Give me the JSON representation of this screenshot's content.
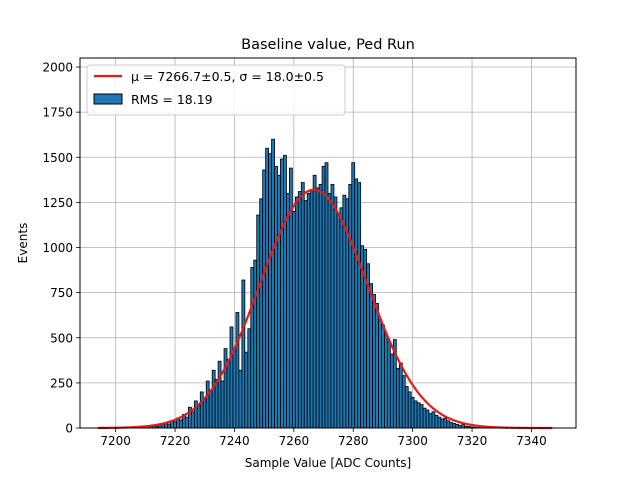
{
  "chart_data": {
    "type": "bar",
    "title": "Baseline value, Ped Run",
    "xlabel": "Sample Value [ADC Counts]",
    "ylabel": "Events",
    "xlim": [
      7188,
      7355
    ],
    "ylim": [
      0,
      2050
    ],
    "xticks": [
      7200,
      7220,
      7240,
      7260,
      7280,
      7300,
      7320,
      7340
    ],
    "yticks": [
      0,
      250,
      500,
      750,
      1000,
      1250,
      1500,
      1750,
      2000
    ],
    "grid": true,
    "legend_position": "top-left",
    "colors": {
      "bars": "#1f77b4",
      "bar_edge": "#000000",
      "fit": "#e41a1c",
      "grid": "#b0b0b0"
    },
    "histogram": {
      "name": "RMS = 18.19",
      "bin_width": 1,
      "bins": [
        {
          "x": 7210,
          "y": 3
        },
        {
          "x": 7211,
          "y": 5
        },
        {
          "x": 7212,
          "y": 8
        },
        {
          "x": 7213,
          "y": 12
        },
        {
          "x": 7214,
          "y": 10
        },
        {
          "x": 7215,
          "y": 18
        },
        {
          "x": 7216,
          "y": 20
        },
        {
          "x": 7217,
          "y": 28
        },
        {
          "x": 7218,
          "y": 22
        },
        {
          "x": 7219,
          "y": 40
        },
        {
          "x": 7220,
          "y": 35
        },
        {
          "x": 7221,
          "y": 55
        },
        {
          "x": 7222,
          "y": 45
        },
        {
          "x": 7223,
          "y": 75
        },
        {
          "x": 7224,
          "y": 60
        },
        {
          "x": 7225,
          "y": 115
        },
        {
          "x": 7226,
          "y": 90
        },
        {
          "x": 7227,
          "y": 150
        },
        {
          "x": 7228,
          "y": 125
        },
        {
          "x": 7229,
          "y": 200
        },
        {
          "x": 7230,
          "y": 160
        },
        {
          "x": 7231,
          "y": 260
        },
        {
          "x": 7232,
          "y": 210
        },
        {
          "x": 7233,
          "y": 320
        },
        {
          "x": 7234,
          "y": 270
        },
        {
          "x": 7235,
          "y": 370
        },
        {
          "x": 7236,
          "y": 260
        },
        {
          "x": 7237,
          "y": 440
        },
        {
          "x": 7238,
          "y": 380
        },
        {
          "x": 7239,
          "y": 560
        },
        {
          "x": 7240,
          "y": 430
        },
        {
          "x": 7241,
          "y": 640
        },
        {
          "x": 7242,
          "y": 320
        },
        {
          "x": 7243,
          "y": 820
        },
        {
          "x": 7244,
          "y": 420
        },
        {
          "x": 7245,
          "y": 550
        },
        {
          "x": 7246,
          "y": 890
        },
        {
          "x": 7247,
          "y": 930
        },
        {
          "x": 7248,
          "y": 1180
        },
        {
          "x": 7249,
          "y": 1270
        },
        {
          "x": 7250,
          "y": 1430
        },
        {
          "x": 7251,
          "y": 1550
        },
        {
          "x": 7252,
          "y": 1520
        },
        {
          "x": 7253,
          "y": 1600
        },
        {
          "x": 7254,
          "y": 1450
        },
        {
          "x": 7255,
          "y": 1400
        },
        {
          "x": 7256,
          "y": 1490
        },
        {
          "x": 7257,
          "y": 1510
        },
        {
          "x": 7258,
          "y": 1300
        },
        {
          "x": 7259,
          "y": 1440
        },
        {
          "x": 7260,
          "y": 1200
        },
        {
          "x": 7261,
          "y": 1280
        },
        {
          "x": 7262,
          "y": 1310
        },
        {
          "x": 7263,
          "y": 1360
        },
        {
          "x": 7264,
          "y": 1260
        },
        {
          "x": 7265,
          "y": 1300
        },
        {
          "x": 7266,
          "y": 1320
        },
        {
          "x": 7267,
          "y": 1400
        },
        {
          "x": 7268,
          "y": 1330
        },
        {
          "x": 7269,
          "y": 1350
        },
        {
          "x": 7270,
          "y": 1450
        },
        {
          "x": 7271,
          "y": 1470
        },
        {
          "x": 7272,
          "y": 1300
        },
        {
          "x": 7273,
          "y": 1350
        },
        {
          "x": 7274,
          "y": 1280
        },
        {
          "x": 7275,
          "y": 1180
        },
        {
          "x": 7276,
          "y": 1220
        },
        {
          "x": 7277,
          "y": 1290
        },
        {
          "x": 7278,
          "y": 1270
        },
        {
          "x": 7279,
          "y": 1350
        },
        {
          "x": 7280,
          "y": 1470
        },
        {
          "x": 7281,
          "y": 1380
        },
        {
          "x": 7282,
          "y": 1360
        },
        {
          "x": 7283,
          "y": 1010
        },
        {
          "x": 7284,
          "y": 990
        },
        {
          "x": 7285,
          "y": 910
        },
        {
          "x": 7286,
          "y": 800
        },
        {
          "x": 7287,
          "y": 740
        },
        {
          "x": 7288,
          "y": 690
        },
        {
          "x": 7289,
          "y": 600
        },
        {
          "x": 7290,
          "y": 570
        },
        {
          "x": 7291,
          "y": 520
        },
        {
          "x": 7292,
          "y": 480
        },
        {
          "x": 7293,
          "y": 410
        },
        {
          "x": 7294,
          "y": 490
        },
        {
          "x": 7295,
          "y": 330
        },
        {
          "x": 7296,
          "y": 360
        },
        {
          "x": 7297,
          "y": 290
        },
        {
          "x": 7298,
          "y": 230
        },
        {
          "x": 7299,
          "y": 200
        },
        {
          "x": 7300,
          "y": 170
        },
        {
          "x": 7301,
          "y": 150
        },
        {
          "x": 7302,
          "y": 140
        },
        {
          "x": 7303,
          "y": 130
        },
        {
          "x": 7304,
          "y": 110
        },
        {
          "x": 7305,
          "y": 100
        },
        {
          "x": 7306,
          "y": 80
        },
        {
          "x": 7307,
          "y": 90
        },
        {
          "x": 7308,
          "y": 70
        },
        {
          "x": 7309,
          "y": 60
        },
        {
          "x": 7310,
          "y": 50
        },
        {
          "x": 7311,
          "y": 55
        },
        {
          "x": 7312,
          "y": 40
        },
        {
          "x": 7313,
          "y": 30
        },
        {
          "x": 7314,
          "y": 25
        },
        {
          "x": 7315,
          "y": 20
        },
        {
          "x": 7316,
          "y": 15
        },
        {
          "x": 7317,
          "y": 18
        },
        {
          "x": 7318,
          "y": 10
        },
        {
          "x": 7319,
          "y": 8
        },
        {
          "x": 7320,
          "y": 5
        },
        {
          "x": 7321,
          "y": 4
        },
        {
          "x": 7322,
          "y": 3
        },
        {
          "x": 7323,
          "y": 2
        }
      ]
    },
    "fit": {
      "name": "μ = 7266.7±0.5, σ = 18.0±0.5",
      "type": "gaussian",
      "mu": 7266.7,
      "sigma": 18.0,
      "amplitude": 1320,
      "x_range": [
        7194,
        7347
      ]
    }
  }
}
